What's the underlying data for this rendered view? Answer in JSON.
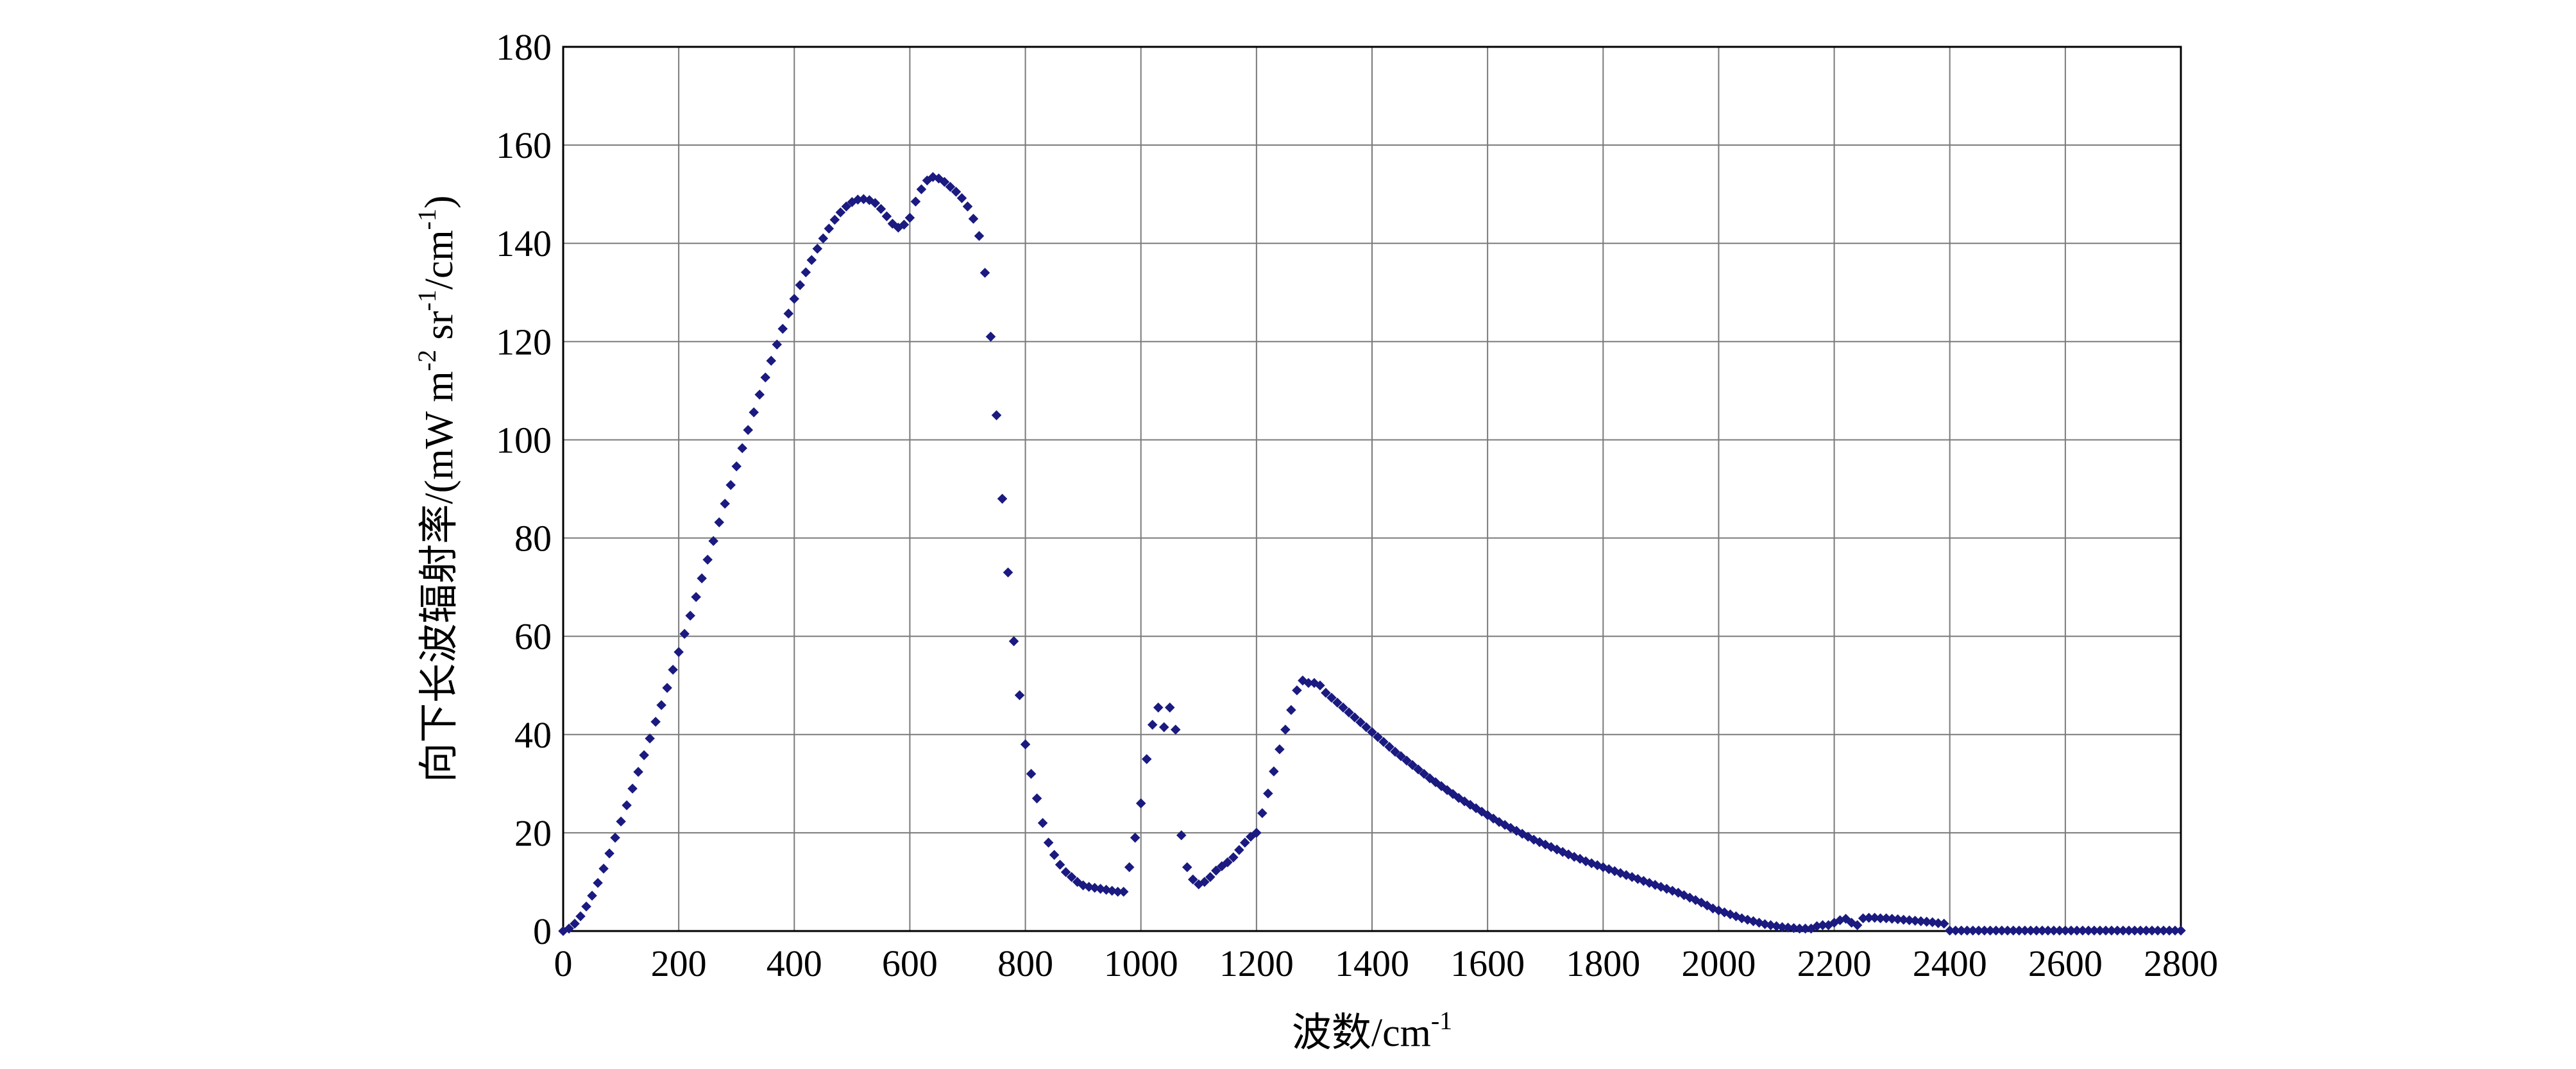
{
  "chart_data": {
    "type": "scatter",
    "title": "",
    "xlabel": "波数/cm",
    "xlabel_sup": "-1",
    "ylabel_parts": [
      "向下长波辐射率/(mW m",
      "-2",
      " sr",
      "-1",
      "/cm",
      "-1",
      ")"
    ],
    "xlim": [
      0,
      2800
    ],
    "ylim": [
      0,
      180
    ],
    "x_ticks": [
      0,
      200,
      400,
      600,
      800,
      1000,
      1200,
      1400,
      1600,
      1800,
      2000,
      2200,
      2400,
      2600,
      2800
    ],
    "y_ticks": [
      0,
      20,
      40,
      60,
      80,
      100,
      120,
      140,
      160,
      180
    ],
    "grid": true,
    "legend": "none",
    "marker_color": "#1a1a80",
    "series": [
      {
        "name": "",
        "points": [
          [
            0,
            0
          ],
          [
            10,
            0.5
          ],
          [
            20,
            1.5
          ],
          [
            30,
            3
          ],
          [
            40,
            5
          ],
          [
            50,
            7.2
          ],
          [
            60,
            9.8
          ],
          [
            70,
            12.7
          ],
          [
            80,
            15.8
          ],
          [
            90,
            19
          ],
          [
            100,
            22.3
          ],
          [
            110,
            25.6
          ],
          [
            120,
            29
          ],
          [
            130,
            32.4
          ],
          [
            140,
            35.8
          ],
          [
            150,
            39.2
          ],
          [
            160,
            42.6
          ],
          [
            170,
            46
          ],
          [
            180,
            49.5
          ],
          [
            190,
            53.2
          ],
          [
            200,
            56.8
          ],
          [
            210,
            60.5
          ],
          [
            220,
            64.2
          ],
          [
            230,
            68
          ],
          [
            240,
            71.8
          ],
          [
            250,
            75.6
          ],
          [
            260,
            79.4
          ],
          [
            270,
            83.2
          ],
          [
            280,
            87
          ],
          [
            290,
            90.8
          ],
          [
            300,
            94.6
          ],
          [
            310,
            98.3
          ],
          [
            320,
            102
          ],
          [
            330,
            105.6
          ],
          [
            340,
            109.2
          ],
          [
            350,
            112.7
          ],
          [
            360,
            116.1
          ],
          [
            370,
            119.4
          ],
          [
            380,
            122.6
          ],
          [
            390,
            125.7
          ],
          [
            400,
            128.7
          ],
          [
            410,
            131.5
          ],
          [
            420,
            134.1
          ],
          [
            430,
            136.6
          ],
          [
            440,
            138.9
          ],
          [
            450,
            141
          ],
          [
            460,
            143
          ],
          [
            470,
            144.8
          ],
          [
            480,
            146.3
          ],
          [
            490,
            147.5
          ],
          [
            500,
            148.4
          ],
          [
            510,
            148.9
          ],
          [
            520,
            149
          ],
          [
            530,
            148.8
          ],
          [
            540,
            148.2
          ],
          [
            550,
            147
          ],
          [
            560,
            145.5
          ],
          [
            570,
            144
          ],
          [
            580,
            143.2
          ],
          [
            590,
            143.8
          ],
          [
            600,
            145.2
          ],
          [
            610,
            148.5
          ],
          [
            620,
            151
          ],
          [
            630,
            152.8
          ],
          [
            640,
            153.5
          ],
          [
            650,
            153.2
          ],
          [
            660,
            152.5
          ],
          [
            670,
            151.5
          ],
          [
            680,
            150.5
          ],
          [
            690,
            149.2
          ],
          [
            700,
            147.5
          ],
          [
            710,
            145
          ],
          [
            720,
            141.5
          ],
          [
            730,
            134
          ],
          [
            740,
            121
          ],
          [
            750,
            105
          ],
          [
            760,
            88
          ],
          [
            770,
            73
          ],
          [
            780,
            59
          ],
          [
            790,
            48
          ],
          [
            800,
            38
          ],
          [
            810,
            32
          ],
          [
            820,
            27
          ],
          [
            830,
            22
          ],
          [
            840,
            18
          ],
          [
            850,
            15.5
          ],
          [
            860,
            13.5
          ],
          [
            870,
            12
          ],
          [
            880,
            11
          ],
          [
            890,
            10
          ],
          [
            900,
            9.3
          ],
          [
            910,
            9
          ],
          [
            920,
            8.8
          ],
          [
            930,
            8.6
          ],
          [
            940,
            8.4
          ],
          [
            950,
            8.2
          ],
          [
            960,
            8
          ],
          [
            970,
            8
          ],
          [
            980,
            13
          ],
          [
            990,
            19
          ],
          [
            1000,
            26
          ],
          [
            1010,
            35
          ],
          [
            1020,
            42
          ],
          [
            1030,
            45.5
          ],
          [
            1040,
            41.5
          ],
          [
            1050,
            45.5
          ],
          [
            1060,
            41
          ],
          [
            1070,
            19.5
          ],
          [
            1080,
            13
          ],
          [
            1090,
            10.5
          ],
          [
            1100,
            9.5
          ],
          [
            1110,
            10
          ],
          [
            1120,
            11
          ],
          [
            1130,
            12.3
          ],
          [
            1140,
            13.2
          ],
          [
            1150,
            14
          ],
          [
            1160,
            15
          ],
          [
            1170,
            16.5
          ],
          [
            1180,
            18
          ],
          [
            1190,
            19.2
          ],
          [
            1200,
            20
          ],
          [
            1210,
            24
          ],
          [
            1220,
            28
          ],
          [
            1230,
            32.5
          ],
          [
            1240,
            37
          ],
          [
            1250,
            41
          ],
          [
            1260,
            45
          ],
          [
            1270,
            49
          ],
          [
            1280,
            51
          ],
          [
            1290,
            50.5
          ],
          [
            1300,
            50.5
          ],
          [
            1310,
            50
          ],
          [
            1320,
            48.5
          ],
          [
            1330,
            47.5
          ],
          [
            1340,
            46.5
          ],
          [
            1350,
            45.5
          ],
          [
            1360,
            44.5
          ],
          [
            1370,
            43.5
          ],
          [
            1380,
            42.5
          ],
          [
            1390,
            41.5
          ],
          [
            1400,
            40.5
          ],
          [
            1410,
            39.5
          ],
          [
            1420,
            38.5
          ],
          [
            1430,
            37.5
          ],
          [
            1440,
            36.5
          ],
          [
            1450,
            35.6
          ],
          [
            1460,
            34.7
          ],
          [
            1470,
            33.8
          ],
          [
            1480,
            32.9
          ],
          [
            1490,
            32
          ],
          [
            1500,
            31.1
          ],
          [
            1510,
            30.3
          ],
          [
            1520,
            29.5
          ],
          [
            1530,
            28.7
          ],
          [
            1540,
            27.9
          ],
          [
            1550,
            27.1
          ],
          [
            1560,
            26.4
          ],
          [
            1570,
            25.7
          ],
          [
            1580,
            25
          ],
          [
            1590,
            24.3
          ],
          [
            1600,
            23.6
          ],
          [
            1610,
            22.9
          ],
          [
            1620,
            22.2
          ],
          [
            1630,
            21.6
          ],
          [
            1640,
            21
          ],
          [
            1650,
            20.4
          ],
          [
            1660,
            19.8
          ],
          [
            1670,
            19.2
          ],
          [
            1680,
            18.6
          ],
          [
            1690,
            18.1
          ],
          [
            1700,
            17.6
          ],
          [
            1710,
            17.1
          ],
          [
            1720,
            16.6
          ],
          [
            1730,
            16.1
          ],
          [
            1740,
            15.6
          ],
          [
            1750,
            15.1
          ],
          [
            1760,
            14.7
          ],
          [
            1770,
            14.2
          ],
          [
            1780,
            13.8
          ],
          [
            1790,
            13.4
          ],
          [
            1800,
            13
          ],
          [
            1810,
            12.6
          ],
          [
            1820,
            12.2
          ],
          [
            1830,
            11.8
          ],
          [
            1840,
            11.4
          ],
          [
            1850,
            11
          ],
          [
            1860,
            10.6
          ],
          [
            1870,
            10.2
          ],
          [
            1880,
            9.8
          ],
          [
            1890,
            9.4
          ],
          [
            1900,
            9
          ],
          [
            1910,
            8.6
          ],
          [
            1920,
            8.2
          ],
          [
            1930,
            7.8
          ],
          [
            1940,
            7.3
          ],
          [
            1950,
            6.8
          ],
          [
            1960,
            6.3
          ],
          [
            1970,
            5.8
          ],
          [
            1980,
            5.2
          ],
          [
            1990,
            4.6
          ],
          [
            2000,
            4.2
          ],
          [
            2010,
            3.8
          ],
          [
            2020,
            3.4
          ],
          [
            2030,
            3
          ],
          [
            2040,
            2.6
          ],
          [
            2050,
            2.3
          ],
          [
            2060,
            2
          ],
          [
            2070,
            1.7
          ],
          [
            2080,
            1.4
          ],
          [
            2090,
            1.2
          ],
          [
            2100,
            1
          ],
          [
            2110,
            0.8
          ],
          [
            2120,
            0.7
          ],
          [
            2130,
            0.6
          ],
          [
            2140,
            0.5
          ],
          [
            2150,
            0.5
          ],
          [
            2160,
            0.5
          ],
          [
            2170,
            1
          ],
          [
            2180,
            1.2
          ],
          [
            2190,
            1.2
          ],
          [
            2200,
            1.7
          ],
          [
            2210,
            2.2
          ],
          [
            2220,
            2.5
          ],
          [
            2230,
            1.7
          ],
          [
            2240,
            1.2
          ],
          [
            2250,
            2.6
          ],
          [
            2260,
            2.7
          ],
          [
            2270,
            2.7
          ],
          [
            2280,
            2.6
          ],
          [
            2290,
            2.6
          ],
          [
            2300,
            2.5
          ],
          [
            2310,
            2.4
          ],
          [
            2320,
            2.3
          ],
          [
            2330,
            2.2
          ],
          [
            2340,
            2.1
          ],
          [
            2350,
            2
          ],
          [
            2360,
            1.9
          ],
          [
            2370,
            1.8
          ],
          [
            2380,
            1.6
          ],
          [
            2390,
            1.5
          ],
          [
            2400,
            0.1
          ],
          [
            2410,
            0.1
          ],
          [
            2420,
            0.1
          ],
          [
            2430,
            0.1
          ],
          [
            2440,
            0.1
          ],
          [
            2450,
            0.1
          ],
          [
            2460,
            0.1
          ],
          [
            2470,
            0.1
          ],
          [
            2480,
            0.1
          ],
          [
            2490,
            0.1
          ],
          [
            2500,
            0.1
          ],
          [
            2510,
            0.1
          ],
          [
            2520,
            0.1
          ],
          [
            2530,
            0.1
          ],
          [
            2540,
            0.1
          ],
          [
            2550,
            0.1
          ],
          [
            2560,
            0.1
          ],
          [
            2570,
            0.1
          ],
          [
            2580,
            0.1
          ],
          [
            2590,
            0.1
          ],
          [
            2600,
            0.1
          ],
          [
            2610,
            0.1
          ],
          [
            2620,
            0.1
          ],
          [
            2630,
            0.1
          ],
          [
            2640,
            0.1
          ],
          [
            2650,
            0.1
          ],
          [
            2660,
            0.1
          ],
          [
            2670,
            0.1
          ],
          [
            2680,
            0.1
          ],
          [
            2690,
            0.1
          ],
          [
            2700,
            0.1
          ],
          [
            2710,
            0.1
          ],
          [
            2720,
            0.1
          ],
          [
            2730,
            0.1
          ],
          [
            2740,
            0.1
          ],
          [
            2750,
            0.1
          ],
          [
            2760,
            0.1
          ],
          [
            2770,
            0.1
          ],
          [
            2780,
            0.1
          ],
          [
            2790,
            0.1
          ],
          [
            2800,
            0.1
          ]
        ]
      }
    ]
  }
}
